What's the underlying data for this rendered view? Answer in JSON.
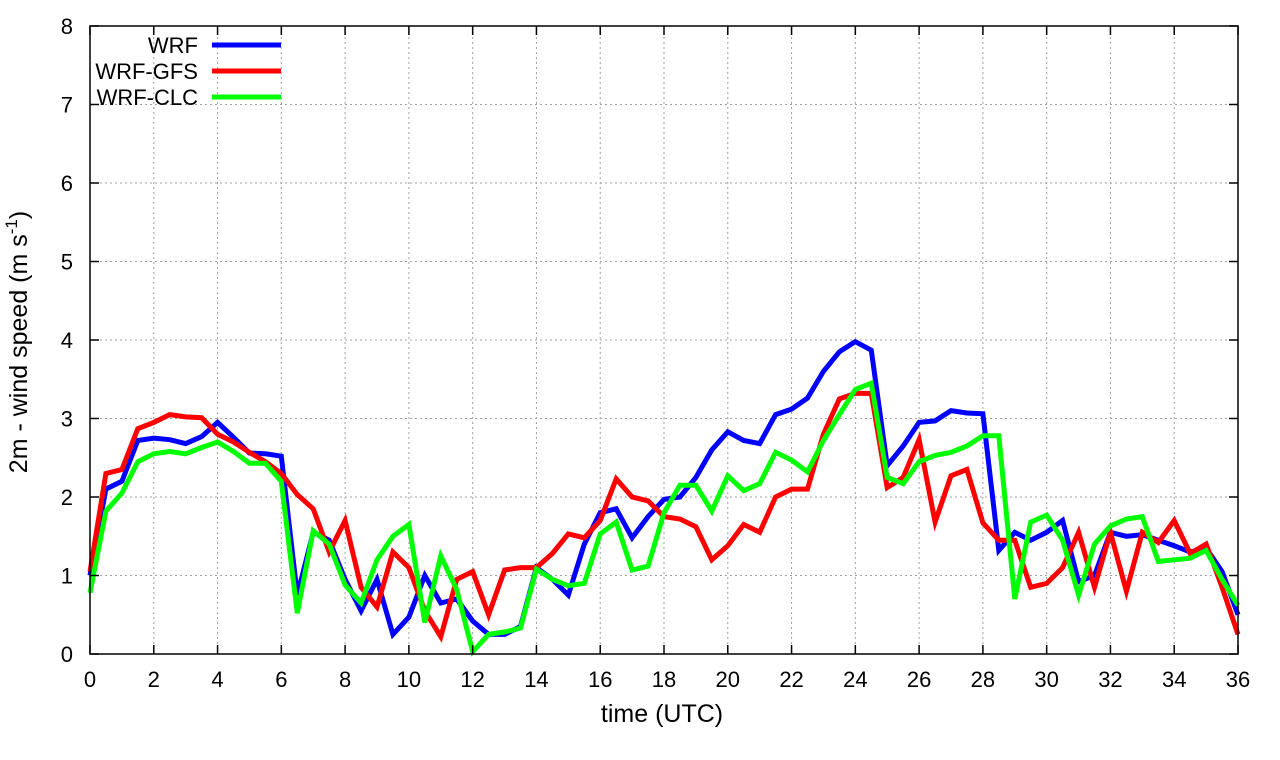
{
  "chart_data": {
    "type": "line",
    "xlabel": "time (UTC)",
    "ylabel_main": "2m - wind speed  (m s",
    "ylabel_sup": "-1",
    "ylabel_end": ")",
    "xlim": [
      0,
      36
    ],
    "ylim": [
      0,
      8
    ],
    "xticks": [
      0,
      2,
      4,
      6,
      8,
      10,
      12,
      14,
      16,
      18,
      20,
      22,
      24,
      26,
      28,
      30,
      32,
      34,
      36
    ],
    "yticks": [
      0,
      1,
      2,
      3,
      4,
      5,
      6,
      7,
      8
    ],
    "grid": true,
    "legend_position": "top-left",
    "series": [
      {
        "name": "WRF",
        "color": "#0000ff",
        "points": [
          [
            0,
            1.0
          ],
          [
            0.5,
            2.1
          ],
          [
            1,
            2.2
          ],
          [
            1.5,
            2.72
          ],
          [
            2,
            2.75
          ],
          [
            2.5,
            2.73
          ],
          [
            3,
            2.68
          ],
          [
            3.5,
            2.77
          ],
          [
            4,
            2.95
          ],
          [
            4.5,
            2.76
          ],
          [
            5,
            2.56
          ],
          [
            5.5,
            2.55
          ],
          [
            6,
            2.52
          ],
          [
            6.5,
            0.75
          ],
          [
            7,
            1.55
          ],
          [
            7.5,
            1.45
          ],
          [
            8,
            0.95
          ],
          [
            8.5,
            0.55
          ],
          [
            9,
            0.95
          ],
          [
            9.5,
            0.25
          ],
          [
            10,
            0.47
          ],
          [
            10.5,
            1.0
          ],
          [
            11,
            0.65
          ],
          [
            11.5,
            0.7
          ],
          [
            12,
            0.42
          ],
          [
            12.5,
            0.25
          ],
          [
            13,
            0.25
          ],
          [
            13.5,
            0.35
          ],
          [
            14,
            1.1
          ],
          [
            14.5,
            0.95
          ],
          [
            15,
            0.75
          ],
          [
            15.5,
            1.4
          ],
          [
            16,
            1.8
          ],
          [
            16.5,
            1.85
          ],
          [
            17,
            1.48
          ],
          [
            17.5,
            1.75
          ],
          [
            18,
            1.97
          ],
          [
            18.5,
            2.0
          ],
          [
            19,
            2.25
          ],
          [
            19.5,
            2.6
          ],
          [
            20,
            2.83
          ],
          [
            20.5,
            2.72
          ],
          [
            21,
            2.68
          ],
          [
            21.5,
            3.05
          ],
          [
            22,
            3.12
          ],
          [
            22.5,
            3.26
          ],
          [
            23,
            3.6
          ],
          [
            23.5,
            3.85
          ],
          [
            24,
            3.98
          ],
          [
            24.5,
            3.87
          ],
          [
            25,
            2.4
          ],
          [
            25.5,
            2.65
          ],
          [
            26,
            2.95
          ],
          [
            26.5,
            2.97
          ],
          [
            27,
            3.1
          ],
          [
            27.5,
            3.07
          ],
          [
            28,
            3.06
          ],
          [
            28.5,
            1.32
          ],
          [
            29,
            1.55
          ],
          [
            29.5,
            1.45
          ],
          [
            30,
            1.55
          ],
          [
            30.5,
            1.7
          ],
          [
            31,
            0.92
          ],
          [
            31.5,
            1.0
          ],
          [
            32,
            1.55
          ],
          [
            32.5,
            1.5
          ],
          [
            33,
            1.52
          ],
          [
            33.5,
            1.45
          ],
          [
            34,
            1.38
          ],
          [
            34.5,
            1.3
          ],
          [
            35,
            1.35
          ],
          [
            35.5,
            1.05
          ],
          [
            36,
            0.5
          ]
        ]
      },
      {
        "name": "WRF-GFS",
        "color": "#ff0000",
        "points": [
          [
            0,
            1.05
          ],
          [
            0.5,
            2.3
          ],
          [
            1,
            2.35
          ],
          [
            1.5,
            2.87
          ],
          [
            2,
            2.95
          ],
          [
            2.5,
            3.05
          ],
          [
            3,
            3.02
          ],
          [
            3.5,
            3.01
          ],
          [
            4,
            2.8
          ],
          [
            4.5,
            2.7
          ],
          [
            5,
            2.57
          ],
          [
            5.5,
            2.45
          ],
          [
            6,
            2.3
          ],
          [
            6.5,
            2.03
          ],
          [
            7,
            1.85
          ],
          [
            7.5,
            1.3
          ],
          [
            8,
            1.7
          ],
          [
            8.5,
            0.85
          ],
          [
            9,
            0.6
          ],
          [
            9.5,
            1.3
          ],
          [
            10,
            1.1
          ],
          [
            10.5,
            0.55
          ],
          [
            11,
            0.22
          ],
          [
            11.5,
            0.95
          ],
          [
            12,
            1.05
          ],
          [
            12.5,
            0.5
          ],
          [
            13,
            1.07
          ],
          [
            13.5,
            1.1
          ],
          [
            14,
            1.1
          ],
          [
            14.5,
            1.28
          ],
          [
            15,
            1.53
          ],
          [
            15.5,
            1.48
          ],
          [
            16,
            1.7
          ],
          [
            16.5,
            2.23
          ],
          [
            17,
            2.0
          ],
          [
            17.5,
            1.95
          ],
          [
            18,
            1.75
          ],
          [
            18.5,
            1.72
          ],
          [
            19,
            1.62
          ],
          [
            19.5,
            1.2
          ],
          [
            20,
            1.38
          ],
          [
            20.5,
            1.65
          ],
          [
            21,
            1.55
          ],
          [
            21.5,
            2.0
          ],
          [
            22,
            2.1
          ],
          [
            22.5,
            2.1
          ],
          [
            23,
            2.8
          ],
          [
            23.5,
            3.25
          ],
          [
            24,
            3.32
          ],
          [
            24.5,
            3.32
          ],
          [
            25,
            2.12
          ],
          [
            25.5,
            2.25
          ],
          [
            26,
            2.73
          ],
          [
            26.5,
            1.68
          ],
          [
            27,
            2.27
          ],
          [
            27.5,
            2.35
          ],
          [
            28,
            1.67
          ],
          [
            28.5,
            1.45
          ],
          [
            29,
            1.45
          ],
          [
            29.5,
            0.85
          ],
          [
            30,
            0.9
          ],
          [
            30.5,
            1.1
          ],
          [
            31,
            1.55
          ],
          [
            31.5,
            0.85
          ],
          [
            32,
            1.55
          ],
          [
            32.5,
            0.8
          ],
          [
            33,
            1.55
          ],
          [
            33.5,
            1.42
          ],
          [
            34,
            1.7
          ],
          [
            34.5,
            1.28
          ],
          [
            35,
            1.4
          ],
          [
            35.5,
            0.85
          ],
          [
            36,
            0.25
          ]
        ]
      },
      {
        "name": "WRF-CLC",
        "color": "#00ff00",
        "points": [
          [
            0,
            0.78
          ],
          [
            0.5,
            1.82
          ],
          [
            1,
            2.05
          ],
          [
            1.5,
            2.45
          ],
          [
            2,
            2.55
          ],
          [
            2.5,
            2.58
          ],
          [
            3,
            2.55
          ],
          [
            3.5,
            2.63
          ],
          [
            4,
            2.7
          ],
          [
            4.5,
            2.58
          ],
          [
            5,
            2.43
          ],
          [
            5.5,
            2.43
          ],
          [
            6,
            2.2
          ],
          [
            6.5,
            0.52
          ],
          [
            7,
            1.57
          ],
          [
            7.5,
            1.4
          ],
          [
            8,
            0.88
          ],
          [
            8.5,
            0.65
          ],
          [
            9,
            1.2
          ],
          [
            9.5,
            1.5
          ],
          [
            10,
            1.65
          ],
          [
            10.5,
            0.4
          ],
          [
            11,
            1.25
          ],
          [
            11.5,
            0.82
          ],
          [
            12,
            0.03
          ],
          [
            12.5,
            0.25
          ],
          [
            13,
            0.28
          ],
          [
            13.5,
            0.33
          ],
          [
            14,
            1.08
          ],
          [
            14.5,
            0.95
          ],
          [
            15,
            0.87
          ],
          [
            15.5,
            0.9
          ],
          [
            16,
            1.53
          ],
          [
            16.5,
            1.68
          ],
          [
            17,
            1.07
          ],
          [
            17.5,
            1.12
          ],
          [
            18,
            1.8
          ],
          [
            18.5,
            2.15
          ],
          [
            19,
            2.15
          ],
          [
            19.5,
            1.82
          ],
          [
            20,
            2.27
          ],
          [
            20.5,
            2.08
          ],
          [
            21,
            2.17
          ],
          [
            21.5,
            2.57
          ],
          [
            22,
            2.47
          ],
          [
            22.5,
            2.32
          ],
          [
            23,
            2.72
          ],
          [
            23.5,
            3.05
          ],
          [
            24,
            3.37
          ],
          [
            24.5,
            3.45
          ],
          [
            25,
            2.25
          ],
          [
            25.5,
            2.17
          ],
          [
            26,
            2.45
          ],
          [
            26.5,
            2.53
          ],
          [
            27,
            2.57
          ],
          [
            27.5,
            2.65
          ],
          [
            28,
            2.78
          ],
          [
            28.5,
            2.78
          ],
          [
            29,
            0.7
          ],
          [
            29.5,
            1.68
          ],
          [
            30,
            1.77
          ],
          [
            30.5,
            1.45
          ],
          [
            31,
            0.75
          ],
          [
            31.5,
            1.4
          ],
          [
            32,
            1.63
          ],
          [
            32.5,
            1.72
          ],
          [
            33,
            1.75
          ],
          [
            33.5,
            1.18
          ],
          [
            34,
            1.2
          ],
          [
            34.5,
            1.22
          ],
          [
            35,
            1.32
          ],
          [
            35.5,
            0.95
          ],
          [
            36,
            0.62
          ]
        ]
      }
    ]
  }
}
